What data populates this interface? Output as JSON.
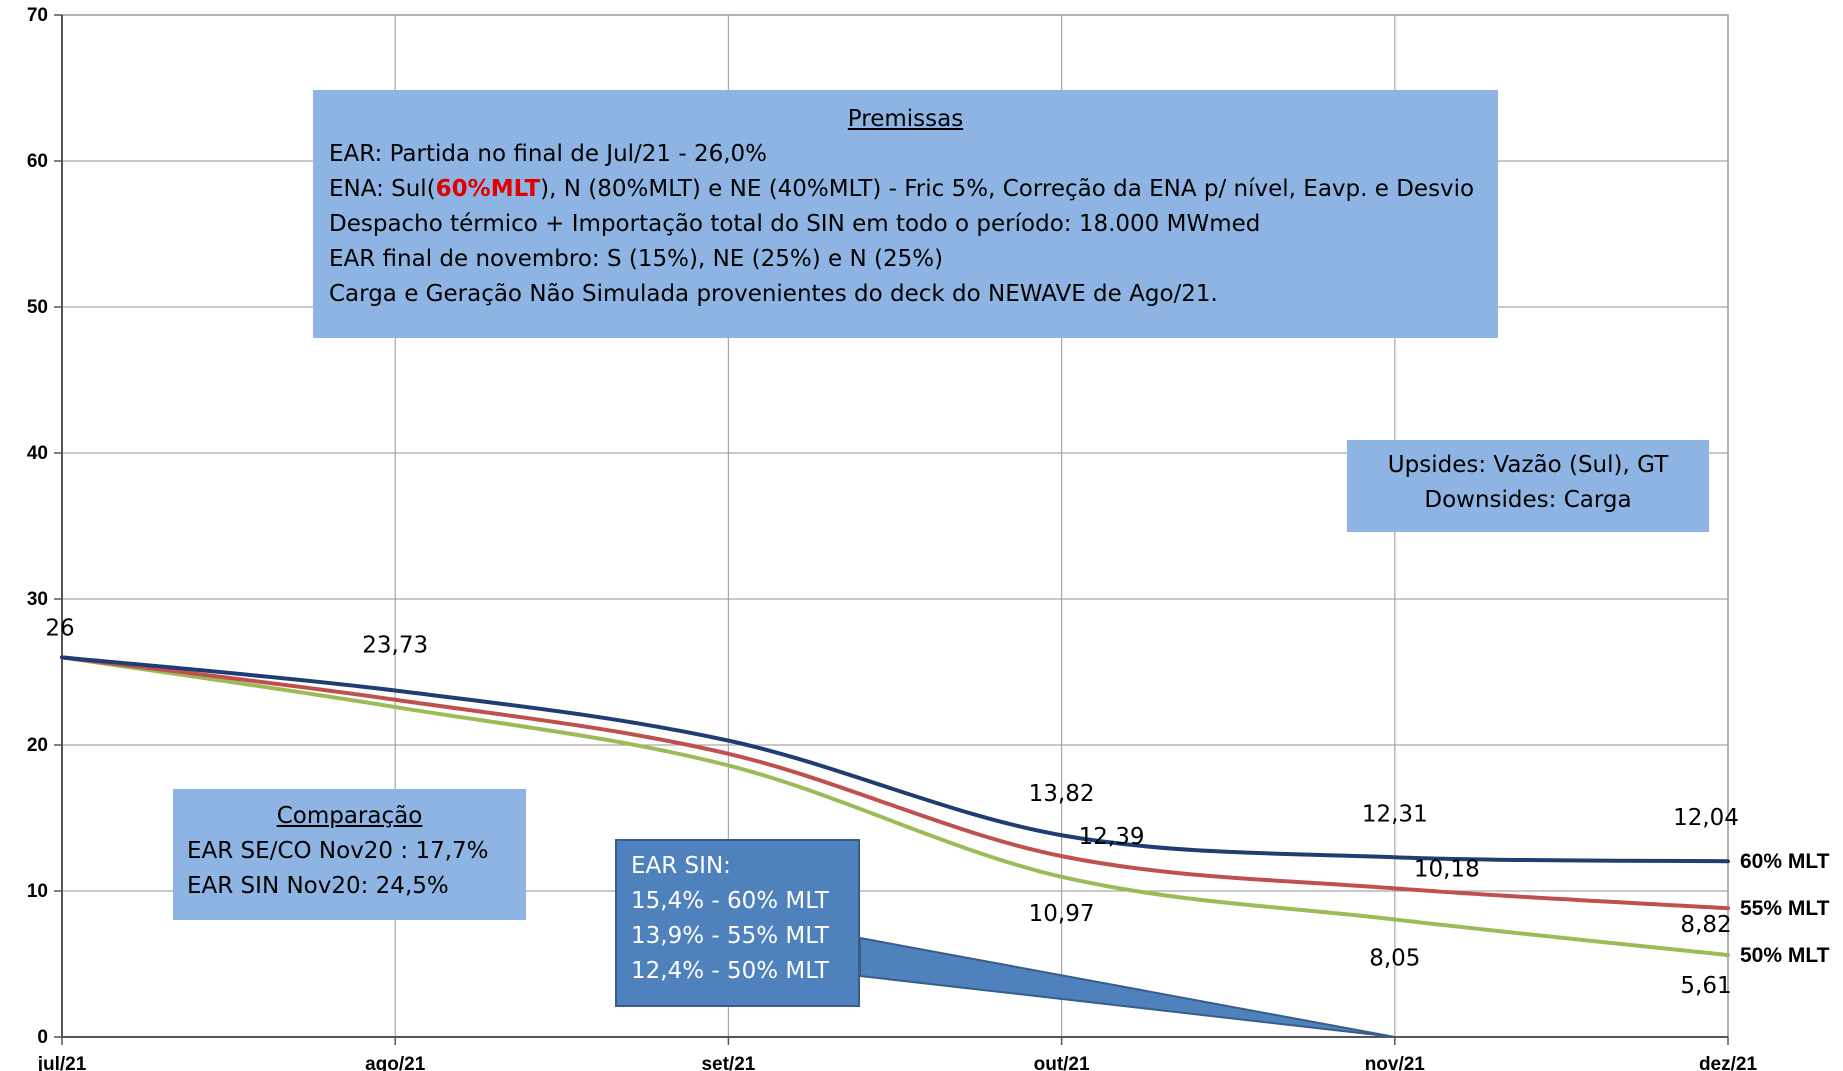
{
  "chart_data": {
    "type": "line",
    "categories": [
      "jul/21",
      "ago/21",
      "set/21",
      "out/21",
      "nov/21",
      "dez/21"
    ],
    "ylim": [
      0,
      70
    ],
    "yticks": [
      0,
      10,
      20,
      30,
      40,
      50,
      60,
      70
    ],
    "grid": true,
    "series": [
      {
        "name": "60% MLT",
        "color": "#1f3d73",
        "values": [
          26,
          23.73,
          20.3,
          13.82,
          12.31,
          12.04
        ],
        "labels": [
          "",
          "23,73",
          "",
          "13,82",
          "12,31",
          "12,04"
        ]
      },
      {
        "name": "55% MLT",
        "color": "#c0504d",
        "values": [
          26,
          23.1,
          19.4,
          12.39,
          10.18,
          8.82
        ],
        "labels": [
          "",
          "",
          "",
          "12,39",
          "10,18",
          "8,82"
        ]
      },
      {
        "name": "50% MLT",
        "color": "#9bbb59",
        "values": [
          26,
          22.6,
          18.6,
          10.97,
          8.05,
          5.61
        ],
        "labels": [
          "",
          "",
          "",
          "10,97",
          "8,05",
          "5,61"
        ]
      }
    ],
    "start_label": "26"
  },
  "premissas": {
    "title": "Premissas",
    "line1": "EAR: Partida no final de Jul/21 - 26,0%",
    "line2_a": "ENA: Sul(",
    "line2_b": "60%MLT",
    "line2_c": "), N (80%MLT) e NE (40%MLT) - Fric 5%, Correção da ENA p/ nível, Eavp. e Desvio",
    "line3": "Despacho térmico + Importação total do SIN em todo o período: 18.000 MWmed",
    "line4": "EAR final de novembro: S (15%), NE (25%) e N (25%)",
    "line5": "Carga e Geração Não Simulada provenientes do deck do NEWAVE de Ago/21."
  },
  "updown": {
    "line1": "Upsides: Vazão (Sul), GT",
    "line2": "Downsides: Carga"
  },
  "comparacao": {
    "title": "Comparação",
    "line1": "EAR SE/CO  Nov20 : 17,7%",
    "line2": "EAR SIN Nov20: 24,5%"
  },
  "earsin": {
    "line1": "EAR SIN:",
    "line2": "15,4% - 60% MLT",
    "line3": "13,9% - 55% MLT",
    "line4": "12,4% - 50% MLT"
  }
}
